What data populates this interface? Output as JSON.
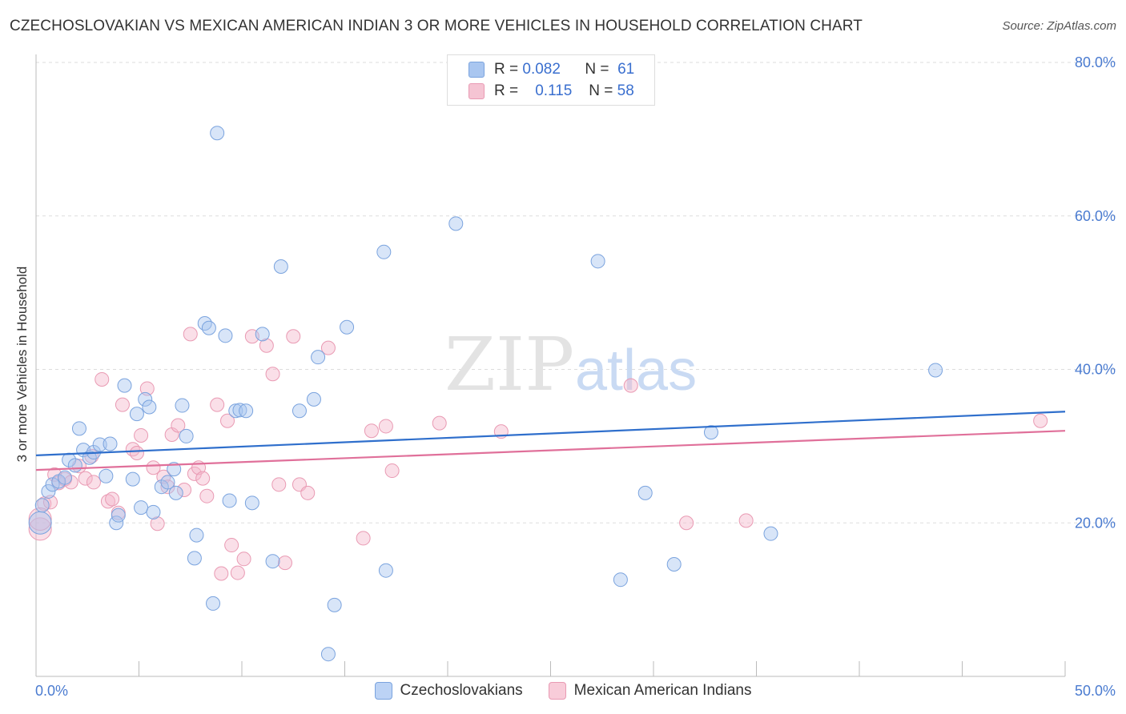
{
  "header": {
    "title": "CZECHOSLOVAKIAN VS MEXICAN AMERICAN INDIAN 3 OR MORE VEHICLES IN HOUSEHOLD CORRELATION CHART",
    "source": "Source: ZipAtlas.com"
  },
  "watermark": {
    "zip": "ZIP",
    "atlas": "atlas"
  },
  "legend": {
    "rows": [
      {
        "r_label": "R =",
        "r_value": "0.082",
        "n_label": "N =",
        "n_value": "61"
      },
      {
        "r_label": "R =",
        "r_value": "0.115",
        "n_label": "N =",
        "n_value": "58"
      }
    ]
  },
  "bottom_legend": {
    "czech": "Czechoslovakians",
    "mexican": "Mexican American Indians"
  },
  "colors": {
    "czech_fill": "#a9c6f0",
    "czech_stroke": "#7aa3de",
    "czech_line": "#2f6fcc",
    "mexican_fill": "#f5b8cb",
    "mexican_stroke": "#e99ab3",
    "mexican_line": "#e0709a",
    "axis_text": "#4a7bd0",
    "grid": "#dddddd"
  },
  "chart_data": {
    "type": "scatter",
    "title": "CZECHOSLOVAKIAN VS MEXICAN AMERICAN INDIAN 3 OR MORE VEHICLES IN HOUSEHOLD CORRELATION CHART",
    "xlabel": "",
    "ylabel": "3 or more Vehicles in Household",
    "xlim": [
      0,
      50
    ],
    "ylim": [
      0,
      80
    ],
    "x_tick_labels": [
      "0.0%",
      "50.0%"
    ],
    "y_ticks": [
      20,
      40,
      60,
      80
    ],
    "y_tick_labels": [
      "20.0%",
      "40.0%",
      "60.0%",
      "80.0%"
    ],
    "grid": true,
    "legend_position": "top-center",
    "series": [
      {
        "name": "Czechoslovakians",
        "r": 0.082,
        "n": 61,
        "trend": {
          "x": [
            0,
            50
          ],
          "y": [
            28.8,
            34.5
          ]
        },
        "points": [
          [
            0.2,
            20.0
          ],
          [
            0.3,
            22.3
          ],
          [
            0.6,
            24.1
          ],
          [
            0.8,
            25.0
          ],
          [
            1.1,
            25.4
          ],
          [
            1.4,
            25.9
          ],
          [
            1.6,
            28.2
          ],
          [
            1.9,
            27.5
          ],
          [
            2.1,
            32.3
          ],
          [
            2.3,
            29.5
          ],
          [
            2.6,
            28.5
          ],
          [
            2.8,
            29.2
          ],
          [
            3.1,
            30.2
          ],
          [
            3.4,
            26.1
          ],
          [
            3.6,
            30.3
          ],
          [
            3.9,
            20.0
          ],
          [
            4.0,
            21.0
          ],
          [
            4.3,
            37.9
          ],
          [
            4.7,
            25.7
          ],
          [
            4.9,
            34.2
          ],
          [
            5.1,
            22.0
          ],
          [
            5.3,
            36.1
          ],
          [
            5.5,
            35.1
          ],
          [
            5.7,
            21.4
          ],
          [
            6.1,
            24.7
          ],
          [
            6.4,
            25.3
          ],
          [
            6.7,
            27.0
          ],
          [
            6.8,
            23.9
          ],
          [
            7.1,
            35.3
          ],
          [
            7.3,
            31.3
          ],
          [
            7.7,
            15.4
          ],
          [
            7.8,
            18.4
          ],
          [
            8.2,
            46.0
          ],
          [
            8.4,
            45.4
          ],
          [
            8.6,
            9.5
          ],
          [
            8.8,
            70.8
          ],
          [
            9.2,
            44.4
          ],
          [
            9.4,
            22.9
          ],
          [
            9.7,
            34.6
          ],
          [
            9.9,
            34.7
          ],
          [
            10.2,
            34.6
          ],
          [
            10.5,
            22.6
          ],
          [
            11.0,
            44.6
          ],
          [
            11.5,
            15.0
          ],
          [
            11.9,
            53.4
          ],
          [
            12.8,
            34.6
          ],
          [
            13.5,
            36.1
          ],
          [
            13.7,
            41.6
          ],
          [
            14.2,
            2.9
          ],
          [
            14.5,
            9.3
          ],
          [
            15.1,
            45.5
          ],
          [
            16.9,
            55.3
          ],
          [
            17.0,
            13.8
          ],
          [
            20.4,
            59.0
          ],
          [
            27.3,
            54.1
          ],
          [
            28.4,
            12.6
          ],
          [
            29.6,
            23.9
          ],
          [
            31.0,
            14.6
          ],
          [
            32.8,
            31.8
          ],
          [
            35.7,
            18.6
          ],
          [
            43.7,
            39.9
          ]
        ]
      },
      {
        "name": "Mexican American Indians",
        "r": 0.115,
        "n": 58,
        "trend": {
          "x": [
            0,
            50
          ],
          "y": [
            26.9,
            32.0
          ]
        },
        "points": [
          [
            0.2,
            19.2
          ],
          [
            0.4,
            22.5
          ],
          [
            0.7,
            22.7
          ],
          [
            0.9,
            26.3
          ],
          [
            1.1,
            25.2
          ],
          [
            1.4,
            25.7
          ],
          [
            1.7,
            25.3
          ],
          [
            2.1,
            27.4
          ],
          [
            2.4,
            25.8
          ],
          [
            2.7,
            28.7
          ],
          [
            2.8,
            25.3
          ],
          [
            3.2,
            38.7
          ],
          [
            3.5,
            22.8
          ],
          [
            3.7,
            23.1
          ],
          [
            4.0,
            21.3
          ],
          [
            4.2,
            35.4
          ],
          [
            4.7,
            29.6
          ],
          [
            4.9,
            29.1
          ],
          [
            5.1,
            31.4
          ],
          [
            5.4,
            37.5
          ],
          [
            5.7,
            27.2
          ],
          [
            5.9,
            19.9
          ],
          [
            6.2,
            26.0
          ],
          [
            6.4,
            24.7
          ],
          [
            6.6,
            31.5
          ],
          [
            6.9,
            32.7
          ],
          [
            7.2,
            24.3
          ],
          [
            7.5,
            44.6
          ],
          [
            7.7,
            26.4
          ],
          [
            7.9,
            27.2
          ],
          [
            8.1,
            25.8
          ],
          [
            8.3,
            23.5
          ],
          [
            8.8,
            35.4
          ],
          [
            9.0,
            13.4
          ],
          [
            9.3,
            33.3
          ],
          [
            9.5,
            17.1
          ],
          [
            9.8,
            13.5
          ],
          [
            10.1,
            15.3
          ],
          [
            10.5,
            44.3
          ],
          [
            11.2,
            43.1
          ],
          [
            11.5,
            39.4
          ],
          [
            11.8,
            25.0
          ],
          [
            12.1,
            14.8
          ],
          [
            12.5,
            44.3
          ],
          [
            12.8,
            25.0
          ],
          [
            13.2,
            23.9
          ],
          [
            14.2,
            42.8
          ],
          [
            15.9,
            18.0
          ],
          [
            16.3,
            32.0
          ],
          [
            17.0,
            32.6
          ],
          [
            17.3,
            26.8
          ],
          [
            19.6,
            33.0
          ],
          [
            22.6,
            31.9
          ],
          [
            28.9,
            37.9
          ],
          [
            31.6,
            20.0
          ],
          [
            34.5,
            20.3
          ],
          [
            48.8,
            33.3
          ],
          [
            0.2,
            20.5
          ]
        ]
      }
    ]
  }
}
